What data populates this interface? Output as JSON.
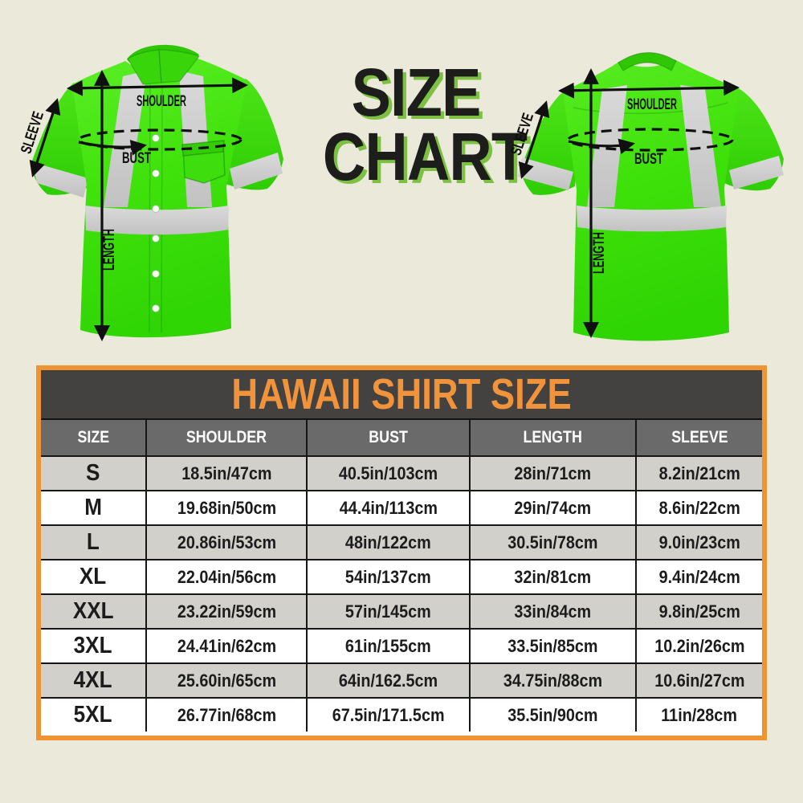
{
  "title": {
    "line1": "SIZE",
    "line2": "CHART"
  },
  "diagram": {
    "front": {
      "view": "front",
      "labels": {
        "shoulder": "SHOULDER",
        "bust": "BUST",
        "sleeve": "SLEEVE",
        "length": "LENGTH"
      }
    },
    "back": {
      "view": "back",
      "labels": {
        "shoulder": "SHOULDER",
        "bust": "BUST",
        "sleeve": "SLEEVE",
        "length": "LENGTH"
      }
    }
  },
  "size_table": {
    "title": "HAWAII SHIRT SIZE",
    "columns": [
      "SIZE",
      "SHOULDER",
      "BUST",
      "LENGTH",
      "SLEEVE"
    ],
    "rows": [
      [
        "S",
        "18.5in/47cm",
        "40.5in/103cm",
        "28in/71cm",
        "8.2in/21cm"
      ],
      [
        "M",
        "19.68in/50cm",
        "44.4in/113cm",
        "29in/74cm",
        "8.6in/22cm"
      ],
      [
        "L",
        "20.86in/53cm",
        "48in/122cm",
        "30.5in/78cm",
        "9.0in/23cm"
      ],
      [
        "XL",
        "22.04in/56cm",
        "54in/137cm",
        "32in/81cm",
        "9.4in/24cm"
      ],
      [
        "XXL",
        "23.22in/59cm",
        "57in/145cm",
        "33in/84cm",
        "9.8in/25cm"
      ],
      [
        "3XL",
        "24.41in/62cm",
        "61in/155cm",
        "33.5in/85cm",
        "10.2in/26cm"
      ],
      [
        "4XL",
        "25.60in/65cm",
        "64in/162.5cm",
        "34.75in/88cm",
        "10.6in/27cm"
      ],
      [
        "5XL",
        "26.77in/68cm",
        "67.5in/171.5cm",
        "35.5in/90cm",
        "11in/28cm"
      ]
    ]
  },
  "chart_data": {
    "type": "table",
    "title": "HAWAII SHIRT SIZE",
    "columns": [
      "SIZE",
      "SHOULDER",
      "BUST",
      "LENGTH",
      "SLEEVE"
    ],
    "rows": [
      [
        "S",
        "18.5in/47cm",
        "40.5in/103cm",
        "28in/71cm",
        "8.2in/21cm"
      ],
      [
        "M",
        "19.68in/50cm",
        "44.4in/113cm",
        "29in/74cm",
        "8.6in/22cm"
      ],
      [
        "L",
        "20.86in/53cm",
        "48in/122cm",
        "30.5in/78cm",
        "9.0in/23cm"
      ],
      [
        "XL",
        "22.04in/56cm",
        "54in/137cm",
        "32in/81cm",
        "9.4in/24cm"
      ],
      [
        "XXL",
        "23.22in/59cm",
        "57in/145cm",
        "33in/84cm",
        "9.8in/25cm"
      ],
      [
        "3XL",
        "24.41in/62cm",
        "61in/155cm",
        "33.5in/85cm",
        "10.2in/26cm"
      ],
      [
        "4XL",
        "25.60in/65cm",
        "64in/162.5cm",
        "34.75in/88cm",
        "10.6in/27cm"
      ],
      [
        "5XL",
        "26.77in/68cm",
        "67.5in/171.5cm",
        "35.5in/90cm",
        "11in/28cm"
      ]
    ]
  },
  "colors": {
    "page_bg": "#ebe9d9",
    "shirt_green": "#3fe20a",
    "stripe_gray": "#cfcfcf",
    "annotation_color": "#101010",
    "title_text": "#1d1d1b",
    "title_shadow_green": "#7dc142",
    "table_border_orange": "#ef9433",
    "table_title_color": "#f0933a",
    "title_band_bg": "#434240",
    "header_bg": "#6a6a6a",
    "header_text": "#ffffff",
    "row_bg": "#ffffff",
    "row_alt_bg": "#d2d0cb",
    "cell_text": "#1c1c1c"
  }
}
